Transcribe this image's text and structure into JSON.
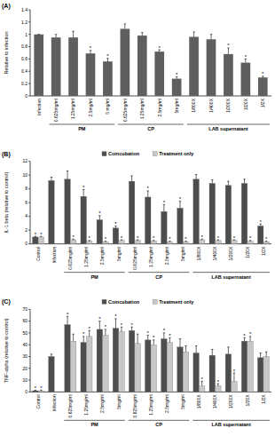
{
  "chart_data": [
    {
      "type": "bar",
      "title": "(A)",
      "y_label": "Relative to infection",
      "categories": [
        "Infection",
        "0.625mg/ml",
        "1.25mg/ml",
        "2.5mg/ml",
        "5 mg/ml",
        "0.625mg/ml",
        "1.25mg/ml",
        "2.5mg/ml",
        "5mg/ml",
        "1/800X",
        "1/400X",
        "1/200X",
        "1/20X",
        "1/2X"
      ],
      "values": [
        1.0,
        0.95,
        0.95,
        0.69,
        0.56,
        1.09,
        0.98,
        0.72,
        0.28,
        0.96,
        0.92,
        0.68,
        0.54,
        0.3
      ],
      "errors": [
        0.0,
        0.05,
        0.1,
        0.05,
        0.05,
        0.08,
        0.05,
        0.03,
        0.03,
        0.08,
        0.08,
        0.1,
        0.06,
        0.02
      ],
      "significance": [
        null,
        null,
        null,
        "*",
        "*",
        null,
        null,
        "*",
        "*",
        null,
        null,
        "*",
        "*",
        "*"
      ],
      "color": "#5f5f5f",
      "groups": [
        {
          "label": "PM",
          "span": [
            1,
            4
          ]
        },
        {
          "label": "CP",
          "span": [
            5,
            8
          ]
        },
        {
          "label": "LAB supernatant",
          "span": [
            9,
            13
          ]
        }
      ],
      "ylim": [
        0,
        1.4
      ],
      "yticks": [
        0,
        0.2,
        0.4,
        0.6,
        0.8,
        1,
        1.2,
        1.4
      ]
    },
    {
      "type": "bar",
      "title": "(B)",
      "y_label": "IL-1 beta (relative to control)",
      "categories": [
        "Control",
        "Infection",
        "0.625mg/ml",
        "1.25mg/ml",
        "2.5mg/ml",
        "5mg/ml",
        "0.625mg/ml",
        "1.25mg/ml",
        "2.5mg/ml",
        "5mg/ml",
        "1/800X",
        "1/400X",
        "1/200X",
        "1/20X",
        "1/2X"
      ],
      "series": [
        {
          "name": "Coincubation",
          "color": "#4d4d4d",
          "values": [
            1.0,
            9.2,
            9.4,
            6.9,
            3.5,
            2.3,
            9.1,
            6.8,
            4.7,
            5.2,
            9.4,
            8.8,
            8.5,
            8.8,
            2.6
          ],
          "errors": [
            0.1,
            0.5,
            1.2,
            1.0,
            0.6,
            0.3,
            0.8,
            0.9,
            1.0,
            1.0,
            0.7,
            0.5,
            0.6,
            0.6,
            0.3
          ],
          "significance": [
            "*",
            null,
            null,
            "*",
            "*",
            "*",
            null,
            "*",
            "*",
            "*",
            null,
            null,
            null,
            null,
            "*"
          ]
        },
        {
          "name": "Treatment only",
          "color": "#c8c8c8",
          "values": [
            1.0,
            null,
            0.6,
            0.4,
            0.3,
            0.5,
            0.5,
            0.4,
            0.3,
            0.3,
            0.6,
            0.5,
            0.5,
            0.4,
            0.3
          ],
          "errors": [
            0.1,
            null,
            0.1,
            0.1,
            0.1,
            0.1,
            0.1,
            0.1,
            0.1,
            0.1,
            0.1,
            0.1,
            0.1,
            0.1,
            0.1
          ],
          "significance": [
            "*",
            null,
            "*",
            "*",
            "*",
            "*",
            "*",
            "*",
            "*",
            "*",
            "*",
            "*",
            "*",
            "*",
            "*"
          ]
        }
      ],
      "groups": [
        {
          "label": "PM",
          "span": [
            2,
            5
          ]
        },
        {
          "label": "CP",
          "span": [
            6,
            9
          ]
        },
        {
          "label": "LAB supernatant",
          "span": [
            10,
            14
          ]
        }
      ],
      "legend": "top",
      "ylim": [
        0,
        12
      ],
      "yticks": [
        0,
        2,
        4,
        6,
        8,
        10,
        12
      ]
    },
    {
      "type": "bar",
      "title": "(C)",
      "y_label": "TNF-alpha (relative to control)",
      "categories": [
        "Control",
        "Infection",
        "0.625mg/ml",
        "1.25mg/ml",
        "2.5mg/ml",
        "5mg/ml",
        "0.625mg/ml",
        "1.25mg/ml",
        "2.5mg/ml",
        "5mg/ml",
        "1/800X",
        "1/400X",
        "1/200X",
        "1/20X",
        "1/2X"
      ],
      "series": [
        {
          "name": "Coincubation",
          "color": "#4d4d4d",
          "values": [
            1,
            30,
            57,
            42,
            53,
            54,
            52,
            44,
            45,
            38,
            33,
            31,
            32,
            43,
            29
          ],
          "errors": [
            0.5,
            2,
            7,
            5,
            7,
            8,
            3,
            4,
            5,
            7,
            6,
            5,
            6,
            3,
            4
          ],
          "significance": [
            "*",
            null,
            "*",
            "*",
            "*",
            "*",
            "*",
            "*",
            "*",
            null,
            null,
            null,
            null,
            "*",
            null
          ]
        },
        {
          "name": "Treatment only",
          "color": "#c8c8c8",
          "values": [
            1,
            null,
            43,
            47,
            48,
            51,
            41,
            40,
            42,
            34,
            5,
            5,
            9,
            43,
            30
          ],
          "errors": [
            0.5,
            null,
            6,
            5,
            5,
            4,
            8,
            4,
            4,
            5,
            4,
            2,
            7,
            4,
            4
          ],
          "significance": [
            "*",
            null,
            null,
            "*",
            "*",
            "*",
            null,
            "*",
            "*",
            null,
            "*",
            "*",
            "*",
            "*",
            null
          ]
        }
      ],
      "groups": [
        {
          "label": "PM",
          "span": [
            2,
            5
          ]
        },
        {
          "label": "CP",
          "span": [
            6,
            9
          ]
        },
        {
          "label": "LAB supernatant",
          "span": [
            10,
            14
          ]
        }
      ],
      "legend": "top",
      "ylim": [
        0,
        70
      ],
      "yticks": [
        0,
        10,
        20,
        30,
        40,
        50,
        60,
        70
      ]
    }
  ]
}
